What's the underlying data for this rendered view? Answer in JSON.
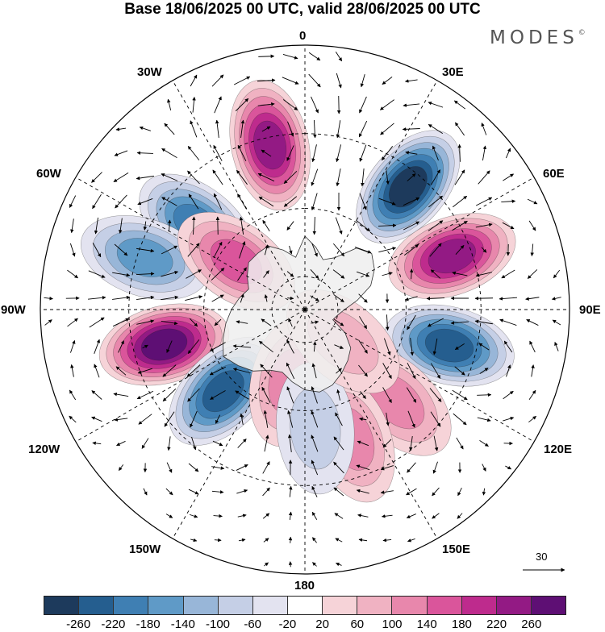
{
  "title": "Base 18/06/2025 00 UTC, valid 28/06/2025 00 UTC",
  "brand": "MODES",
  "brand_mark": "©",
  "longitude_labels": {
    "lon_0": "0",
    "lon_30e": "30E",
    "lon_60e": "60E",
    "lon_90e": "90E",
    "lon_120e": "120E",
    "lon_150e": "150E",
    "lon_180": "180",
    "lon_150w": "150W",
    "lon_120w": "120W",
    "lon_90w": "90W",
    "lon_60w": "60W",
    "lon_30w": "30W"
  },
  "vector_reference": "30",
  "colorbar": {
    "colors": [
      "#1d3a5c",
      "#255e8f",
      "#3f7fb3",
      "#5f9ac7",
      "#98b6d8",
      "#c5cfe6",
      "#e3e3f0",
      "#ffffff",
      "#f6d3d8",
      "#f0b2c2",
      "#e887ac",
      "#da559b",
      "#be2b8d",
      "#931a84",
      "#5e0f74"
    ],
    "ticks": [
      "-260",
      "-220",
      "-180",
      "-140",
      "-100",
      "-60",
      "-20",
      "20",
      "60",
      "100",
      "140",
      "180",
      "220",
      "260"
    ]
  },
  "map": {
    "projection": "south-polar-stereographic",
    "land_color": "#eeeeee",
    "anomaly_centers": [
      {
        "lon": 40,
        "lat": -44,
        "anomaly": -270
      },
      {
        "lon": -12,
        "lat": -42,
        "anomaly": 250
      },
      {
        "lon": -52,
        "lat": -50,
        "anomaly": -200
      },
      {
        "lon": -72,
        "lat": -42,
        "anomaly": -150
      },
      {
        "lon": -55,
        "lat": -65,
        "anomaly": 150
      },
      {
        "lon": -104,
        "lat": -48,
        "anomaly": 270
      },
      {
        "lon": -135,
        "lat": -56,
        "anomaly": -250
      },
      {
        "lon": -168,
        "lat": -68,
        "anomaly": 120
      },
      {
        "lon": 70,
        "lat": -45,
        "anomaly": 250
      },
      {
        "lon": 104,
        "lat": -47,
        "anomaly": -230
      },
      {
        "lon": 135,
        "lat": -52,
        "anomaly": 120
      },
      {
        "lon": 160,
        "lat": -50,
        "anomaly": 100
      },
      {
        "lon": 175,
        "lat": -55,
        "anomaly": -80
      },
      {
        "lon": 130,
        "lat": -75,
        "anomaly": 60
      }
    ]
  }
}
